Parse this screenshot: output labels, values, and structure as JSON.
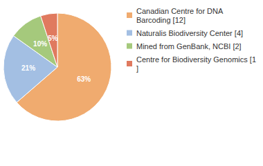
{
  "chart_data": {
    "type": "pie",
    "categories": [
      "Canadian Centre for DNA Barcoding [12]",
      "Naturalis Biodiversity Center [4]",
      "Mined from GenBank, NCBI [2]",
      "Centre for Biodiversity Genomics [1]"
    ],
    "values": [
      63,
      21,
      10,
      5
    ],
    "value_labels": [
      "63%",
      "21%",
      "10%",
      "5%"
    ],
    "colors": [
      "#f0ab6f",
      "#a3bfe3",
      "#a5c97c",
      "#e07a5f"
    ],
    "data_labels": true,
    "legend": "top-right"
  }
}
